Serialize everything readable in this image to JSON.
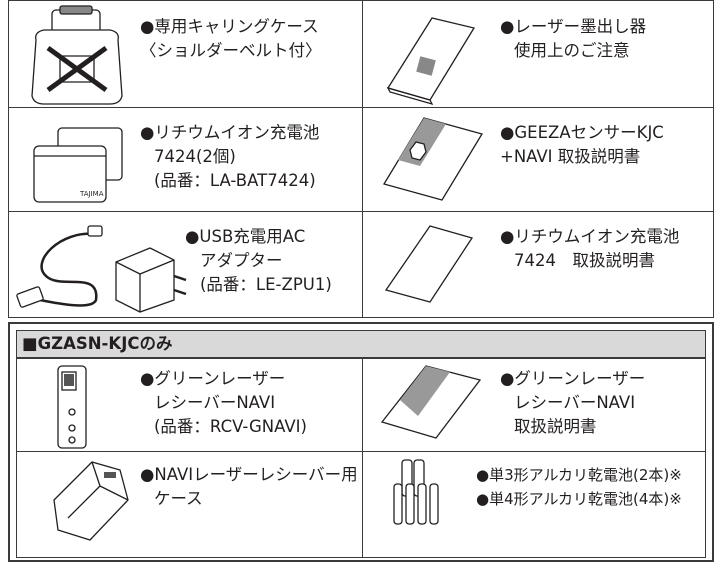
{
  "table": {
    "rows": [
      [
        [
          "●専用キャリングケース",
          "〈ショルダーベルト付〉"
        ],
        [
          "●レーザー墨出し器",
          "使用上のご注意"
        ]
      ],
      [
        [
          "●リチウムイオン充電池",
          "7424(2個)",
          "(品番：LA-BAT7424)"
        ],
        [
          "●GEEZAセンサーKJC",
          "+NAVI 取扱説明書"
        ]
      ],
      [
        [
          "●USB充電用AC",
          "アダプター",
          "(品番：LE-ZPU1)"
        ],
        [
          "●リチウムイオン充電池",
          "7424　取扱説明書"
        ]
      ]
    ]
  },
  "section": {
    "title": "■GZASN-KJCのみ",
    "rows": [
      [
        [
          "●グリーンレーザー",
          "レシーバーNAVI",
          "(品番：RCV-GNAVI)"
        ],
        [
          "●グリーンレーザー",
          "レシーバーNAVI",
          "取扱説明書"
        ]
      ],
      [
        [
          "●NAVIレーザーレシーバー用",
          "ケース"
        ],
        [
          "●単3形アルカリ乾電池(2本)※",
          "●単4形アルカリ乾電池(4本)※"
        ]
      ]
    ]
  }
}
